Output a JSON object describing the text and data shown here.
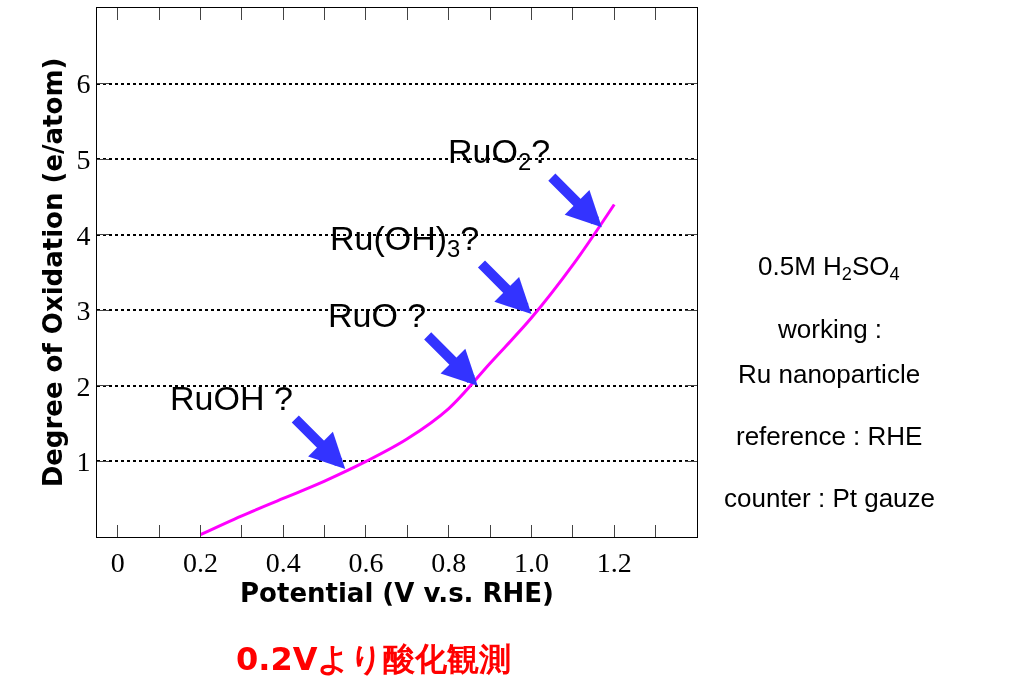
{
  "chart_data": {
    "type": "line",
    "xlabel": "Potential (V v.s. RHE)",
    "ylabel": "Degree of Oxidation (e/atom)",
    "x": [
      0.2,
      0.3,
      0.4,
      0.5,
      0.6,
      0.7,
      0.8,
      0.9,
      1.0,
      1.1,
      1.2
    ],
    "series": [
      {
        "color": "#ff00ff",
        "values": [
          0.03,
          0.28,
          0.51,
          0.74,
          1.0,
          1.3,
          1.7,
          2.3,
          2.9,
          3.6,
          4.4
        ]
      }
    ],
    "xlim": [
      -0.05,
      1.4
    ],
    "ylim": [
      0,
      7
    ],
    "xticks": [
      0,
      {
        "value": 0.1,
        "label": null
      },
      0.2,
      {
        "value": 0.3,
        "label": null
      },
      0.4,
      {
        "value": 0.5,
        "label": null
      },
      0.6,
      {
        "value": 0.7,
        "label": null
      },
      0.8,
      {
        "value": 0.9,
        "label": null
      },
      {
        "value": 1.0,
        "label": "1.0"
      },
      {
        "value": 1.1,
        "label": null
      },
      1.2,
      {
        "value": 1.3,
        "label": null
      }
    ],
    "yticks": [
      1,
      2,
      3,
      4,
      5,
      6
    ],
    "grid": "y",
    "marker": "none",
    "line_style": "solid",
    "annotations": [
      {
        "text": "RuOH ?",
        "x": 0.55,
        "y": 0.9
      },
      {
        "text": "RuO ?",
        "x": 0.87,
        "y": 2.0
      },
      {
        "text": "Ru(OH)$_{3}$?",
        "x": 1.0,
        "y": 2.95
      },
      {
        "text": "RuO$_{2}$?",
        "x": 1.17,
        "y": 4.1
      },
      "0.5M H$_{2}$SO$_{4}$",
      "working :",
      "Ru nanoparticle",
      "reference : RHE",
      "counter : Pt gauze",
      "0.2Vより酸化観測"
    ]
  }
}
